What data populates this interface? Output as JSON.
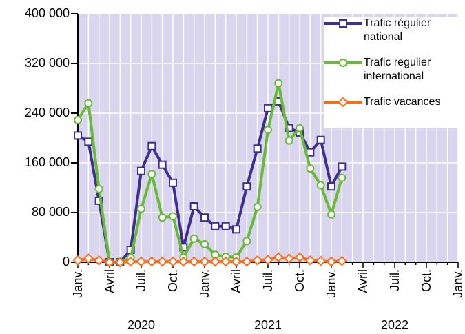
{
  "chart_data": {
    "type": "line",
    "categories": [
      "Janv.",
      null,
      null,
      "Avril",
      null,
      null,
      "Juil.",
      null,
      null,
      "Oct.",
      null,
      null,
      "Janv.",
      null,
      null,
      "Avril",
      null,
      null,
      "Juil.",
      null,
      null,
      "Oct.",
      null,
      null,
      "Janv.",
      null,
      null,
      "Avril",
      null,
      null,
      "Juil.",
      null,
      null,
      "Oct.",
      null,
      null,
      "Janv."
    ],
    "year_labels": [
      "2020",
      "2021",
      "2022"
    ],
    "series": [
      {
        "name": "Trafic régulier national",
        "color": "#3f2d8f",
        "marker": "square",
        "values": [
          204000,
          194000,
          99000,
          0,
          0,
          20000,
          147000,
          187000,
          157000,
          128000,
          24000,
          90000,
          72000,
          58000,
          58000,
          53000,
          122000,
          183000,
          248000,
          259000,
          216000,
          209000,
          177000,
          197000,
          122000,
          154000,
          null,
          null,
          null,
          null,
          null,
          null,
          null,
          null,
          null,
          null,
          null
        ]
      },
      {
        "name": "Trafic regulier international",
        "color": "#66bb33",
        "marker": "circle",
        "values": [
          229000,
          256000,
          118000,
          0,
          0,
          7000,
          86000,
          142000,
          72000,
          74000,
          8000,
          38000,
          29000,
          12000,
          9000,
          8000,
          34000,
          89000,
          213000,
          288000,
          196000,
          216000,
          151000,
          124000,
          77000,
          136000,
          null,
          null,
          null,
          null,
          null,
          null,
          null,
          null,
          null,
          null,
          null
        ]
      },
      {
        "name": "Trafic vacances",
        "color": "#ff6a13",
        "marker": "diamond",
        "values": [
          3000,
          6000,
          3000,
          0,
          0,
          1000,
          1000,
          1000,
          1000,
          1000,
          1000,
          1000,
          1000,
          1000,
          1000,
          1000,
          1000,
          3000,
          4000,
          8000,
          6000,
          8000,
          3000,
          2000,
          1000,
          2000,
          null,
          null,
          null,
          null,
          null,
          null,
          null,
          null,
          null,
          null,
          null
        ]
      }
    ],
    "ylim": [
      0,
      400000
    ],
    "yticks": [
      0,
      {
        "value": 80000,
        "label": "80 000"
      },
      {
        "value": 160000,
        "label": "160 000"
      },
      {
        "value": 240000,
        "label": "240 000"
      },
      {
        "value": 320000,
        "label": "320 000"
      },
      {
        "value": 400000,
        "label": "400 000"
      }
    ],
    "grid": true
  }
}
